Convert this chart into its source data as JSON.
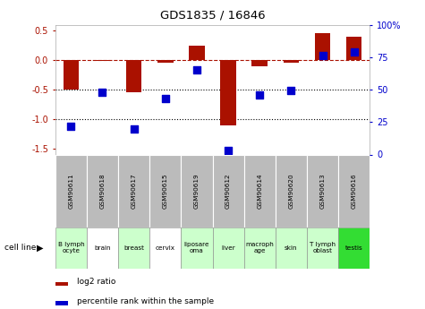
{
  "title": "GDS1835 / 16846",
  "samples": [
    "GSM90611",
    "GSM90618",
    "GSM90617",
    "GSM90615",
    "GSM90619",
    "GSM90612",
    "GSM90614",
    "GSM90620",
    "GSM90613",
    "GSM90616"
  ],
  "cell_display": [
    [
      "B lymph\nocyte",
      "#ccffcc"
    ],
    [
      "brain",
      "#ffffff"
    ],
    [
      "breast",
      "#ccffcc"
    ],
    [
      "cervix",
      "#ffffff"
    ],
    [
      "liposare\noma",
      "#ccffcc"
    ],
    [
      "liver",
      "#ccffcc"
    ],
    [
      "macroph\nage",
      "#ccffcc"
    ],
    [
      "skin",
      "#ccffcc"
    ],
    [
      "T lymph\noblast",
      "#ccffcc"
    ],
    [
      "testis",
      "#33dd33"
    ]
  ],
  "log2_ratio": [
    -0.5,
    -0.02,
    -0.55,
    -0.05,
    0.25,
    -1.1,
    -0.1,
    -0.05,
    0.46,
    0.4
  ],
  "percentile_rank": [
    22,
    48,
    20,
    43,
    65,
    3,
    46,
    49,
    76,
    79
  ],
  "bar_color": "#aa1100",
  "dot_color": "#0000cc",
  "ylim_left": [
    -1.6,
    0.6
  ],
  "ylim_right": [
    0,
    100
  ],
  "hline_y_dotted": [
    -0.5,
    -1.0
  ],
  "hline_y_dashed": 0.0,
  "right_ticks": [
    0,
    25,
    50,
    75,
    100
  ],
  "right_tick_labels": [
    "0",
    "25",
    "50",
    "75",
    "100%"
  ],
  "left_ticks": [
    -1.5,
    -1.0,
    -0.5,
    0.0,
    0.5
  ],
  "bar_width": 0.5,
  "dot_size": 40,
  "gsm_row_color": "#bbbbbb"
}
